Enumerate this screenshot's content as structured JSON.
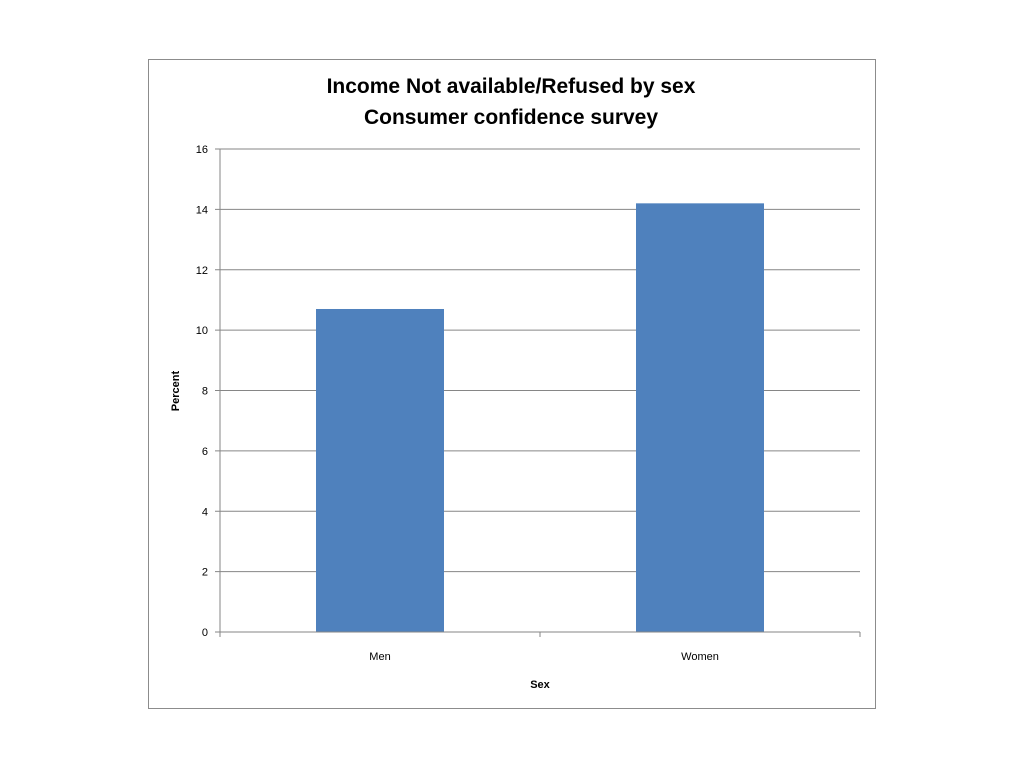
{
  "chart_data": {
    "type": "bar",
    "title": "Income Not available/Refused by sex",
    "subtitle": "Consumer confidence survey",
    "xlabel": "Sex",
    "ylabel": "Percent",
    "categories": [
      "Men",
      "Women"
    ],
    "values": [
      10.7,
      14.2
    ],
    "ylim": [
      0,
      16
    ],
    "yticks": [
      0,
      2,
      4,
      6,
      8,
      10,
      12,
      14,
      16
    ],
    "grid": true,
    "legend": "none",
    "bar_color": "#4F81BD",
    "grid_color": "#868686"
  }
}
